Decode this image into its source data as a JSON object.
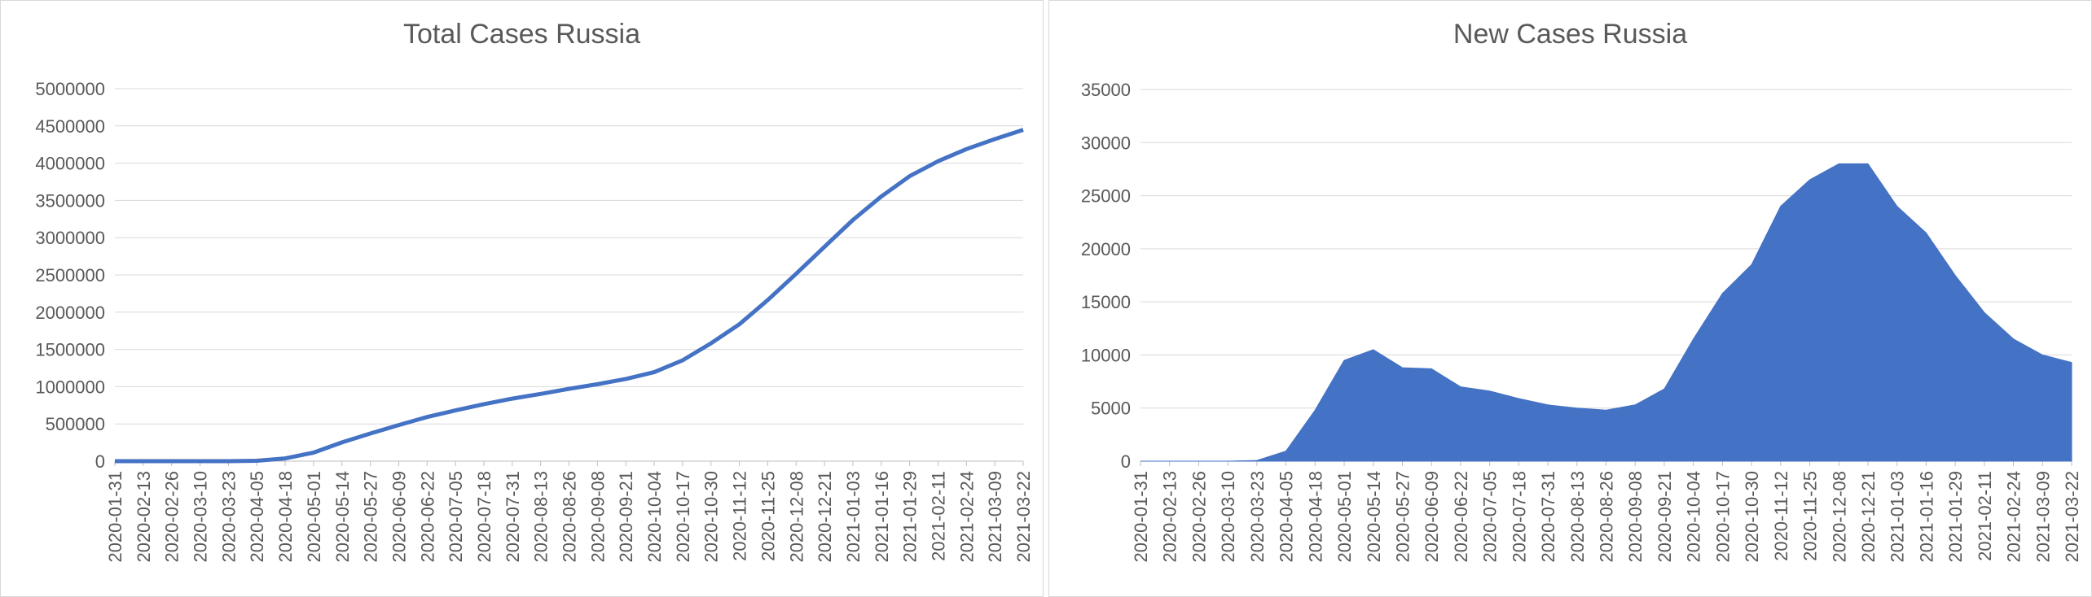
{
  "colors": {
    "series": "#4472c4",
    "grid": "#d9d9d9",
    "text": "#595959"
  },
  "chart_data": [
    {
      "type": "line",
      "title": "Total Cases Russia",
      "xlabel": "",
      "ylabel": "",
      "ylim": [
        0,
        5000000
      ],
      "yticks": [
        0,
        500000,
        1000000,
        1500000,
        2000000,
        2500000,
        3000000,
        3500000,
        4000000,
        4500000,
        5000000
      ],
      "ytick_labels": [
        "0",
        "500000",
        "1000000",
        "1500000",
        "2000000",
        "2500000",
        "3000000",
        "3500000",
        "4000000",
        "4500000",
        "5000000"
      ],
      "xtick_labels": [
        "2020-01-31",
        "2020-02-13",
        "2020-02-26",
        "2020-03-10",
        "2020-03-23",
        "2020-04-05",
        "2020-04-18",
        "2020-05-01",
        "2020-05-14",
        "2020-05-27",
        "2020-06-09",
        "2020-06-22",
        "2020-07-05",
        "2020-07-18",
        "2020-07-31",
        "2020-08-13",
        "2020-08-26",
        "2020-09-08",
        "2020-09-21",
        "2020-10-04",
        "2020-10-17",
        "2020-10-30",
        "2020-11-12",
        "2020-11-25",
        "2020-12-08",
        "2020-12-21",
        "2021-01-03",
        "2021-01-16",
        "2021-01-29",
        "2021-02-11",
        "2021-02-24",
        "2021-03-09",
        "2021-03-22"
      ],
      "grid": true,
      "series": [
        {
          "x": [
            "2020-01-31",
            "2020-02-13",
            "2020-02-26",
            "2020-03-10",
            "2020-03-23",
            "2020-04-05",
            "2020-04-18",
            "2020-05-01",
            "2020-05-14",
            "2020-05-27",
            "2020-06-09",
            "2020-06-22",
            "2020-07-05",
            "2020-07-18",
            "2020-07-31",
            "2020-08-13",
            "2020-08-26",
            "2020-09-08",
            "2020-09-21",
            "2020-10-04",
            "2020-10-17",
            "2020-10-30",
            "2020-11-12",
            "2020-11-25",
            "2020-12-08",
            "2020-12-21",
            "2021-01-03",
            "2021-01-16",
            "2021-01-29",
            "2021-02-11",
            "2021-02-24",
            "2021-03-09",
            "2021-03-22"
          ],
          "values": [
            2,
            2,
            2,
            10,
            438,
            5389,
            36793,
            114431,
            252245,
            370680,
            485253,
            592280,
            681251,
            765437,
            839981,
            902701,
            970865,
            1032354,
            1103399,
            1194643,
            1354163,
            1581693,
            1836960,
            2162503,
            2515009,
            2877727,
            3236787,
            3552888,
            3825739,
            4026506,
            4189153,
            4322776,
            4447570
          ]
        }
      ]
    },
    {
      "type": "area",
      "title": "New Cases Russia",
      "xlabel": "",
      "ylabel": "",
      "ylim": [
        0,
        35000
      ],
      "yticks": [
        0,
        5000,
        10000,
        15000,
        20000,
        25000,
        30000,
        35000
      ],
      "ytick_labels": [
        "0",
        "5000",
        "10000",
        "15000",
        "20000",
        "25000",
        "30000",
        "35000"
      ],
      "xtick_labels": [
        "2020-01-31",
        "2020-02-13",
        "2020-02-26",
        "2020-03-10",
        "2020-03-23",
        "2020-04-05",
        "2020-04-18",
        "2020-05-01",
        "2020-05-14",
        "2020-05-27",
        "2020-06-09",
        "2020-06-22",
        "2020-07-05",
        "2020-07-18",
        "2020-07-31",
        "2020-08-13",
        "2020-08-26",
        "2020-09-08",
        "2020-09-21",
        "2020-10-04",
        "2020-10-17",
        "2020-10-30",
        "2020-11-12",
        "2020-11-25",
        "2020-12-08",
        "2020-12-21",
        "2021-01-03",
        "2021-01-16",
        "2021-01-29",
        "2021-02-11",
        "2021-02-24",
        "2021-03-09",
        "2021-03-22"
      ],
      "grid": true,
      "series": [
        {
          "x": [
            "2020-01-31",
            "2020-02-13",
            "2020-02-26",
            "2020-03-10",
            "2020-03-23",
            "2020-04-05",
            "2020-04-18",
            "2020-05-01",
            "2020-05-14",
            "2020-05-27",
            "2020-06-09",
            "2020-06-22",
            "2020-07-05",
            "2020-07-18",
            "2020-07-31",
            "2020-08-13",
            "2020-08-26",
            "2020-09-08",
            "2020-09-21",
            "2020-10-04",
            "2020-10-17",
            "2020-10-30",
            "2020-11-12",
            "2020-11-25",
            "2020-12-08",
            "2020-12-21",
            "2021-01-03",
            "2021-01-16",
            "2021-01-29",
            "2021-02-11",
            "2021-02-24",
            "2021-03-09",
            "2021-03-22"
          ],
          "values": [
            0,
            0,
            0,
            0,
            70,
            950,
            4800,
            9500,
            10500,
            8800,
            8700,
            7000,
            6600,
            5900,
            5300,
            5000,
            4800,
            5300,
            6800,
            11500,
            15800,
            18500,
            24000,
            26500,
            28000,
            28000,
            24000,
            21500,
            17500,
            14000,
            11500,
            10000,
            9300
          ]
        }
      ]
    }
  ]
}
